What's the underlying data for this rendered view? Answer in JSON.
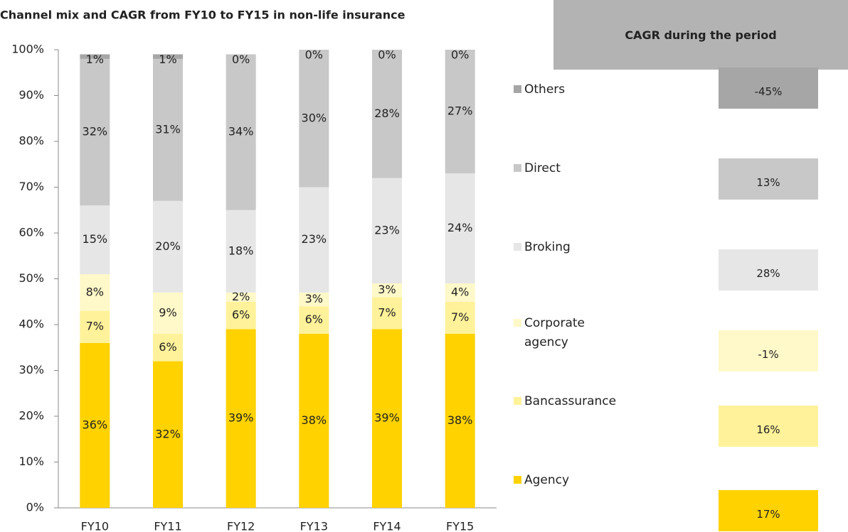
{
  "chart_data": {
    "type": "stacked_bar",
    "title": "Channel mix and CAGR from FY10 to FY15 in non-life insurance",
    "categories": [
      "FY10",
      "FY11",
      "FY12",
      "FY13",
      "FY14",
      "FY15"
    ],
    "series": [
      {
        "name": "Agency",
        "color": "#FFD200",
        "values": [
          36,
          32,
          39,
          38,
          39,
          38
        ],
        "value_labels": [
          "36%",
          "32%",
          "39%",
          "38%",
          "39%",
          "38%"
        ]
      },
      {
        "name": "Bancassurance",
        "color": "#FFF29A",
        "values": [
          7,
          6,
          6,
          6,
          7,
          7
        ],
        "value_labels": [
          "7%",
          "6%",
          "6%",
          "6%",
          "7%",
          "7%"
        ]
      },
      {
        "name": "Corporate agency",
        "color": "#FFF8C8",
        "values": [
          8,
          9,
          2,
          3,
          3,
          4
        ],
        "value_labels": [
          "8%",
          "9%",
          "2%",
          "3%",
          "3%",
          "4%"
        ]
      },
      {
        "name": "Broking",
        "color": "#E6E6E6",
        "values": [
          15,
          20,
          18,
          23,
          23,
          24
        ],
        "value_labels": [
          "15%",
          "20%",
          "18%",
          "23%",
          "23%",
          "24%"
        ]
      },
      {
        "name": "Direct",
        "color": "#C8C8C8",
        "values": [
          32,
          31,
          34,
          30,
          28,
          27
        ],
        "value_labels": [
          "32%",
          "31%",
          "34%",
          "30%",
          "28%",
          "27%"
        ]
      },
      {
        "name": "Others",
        "color": "#A6A6A6",
        "values": [
          1,
          1,
          0,
          0,
          0,
          0
        ],
        "value_labels": [
          "1%",
          "1%",
          "0%",
          "0%",
          "0%",
          "0%"
        ]
      }
    ],
    "ylim": [
      0,
      100
    ],
    "yticks": [
      {
        "value": 0,
        "label": "0%"
      },
      {
        "value": 10,
        "label": "10%"
      },
      {
        "value": 20,
        "label": "20%"
      },
      {
        "value": 30,
        "label": "30%"
      },
      {
        "value": 40,
        "label": "40%"
      },
      {
        "value": 50,
        "label": "50%"
      },
      {
        "value": 60,
        "label": "60%"
      },
      {
        "value": 70,
        "label": "70%"
      },
      {
        "value": 80,
        "label": "80%"
      },
      {
        "value": 90,
        "label": "90%"
      },
      {
        "value": 100,
        "label": "100%"
      }
    ]
  },
  "cagr_table": {
    "title": "CAGR during the period",
    "rows": [
      "17%",
      "16%",
      "-1%",
      "28%",
      "13%",
      "-45%"
    ]
  }
}
